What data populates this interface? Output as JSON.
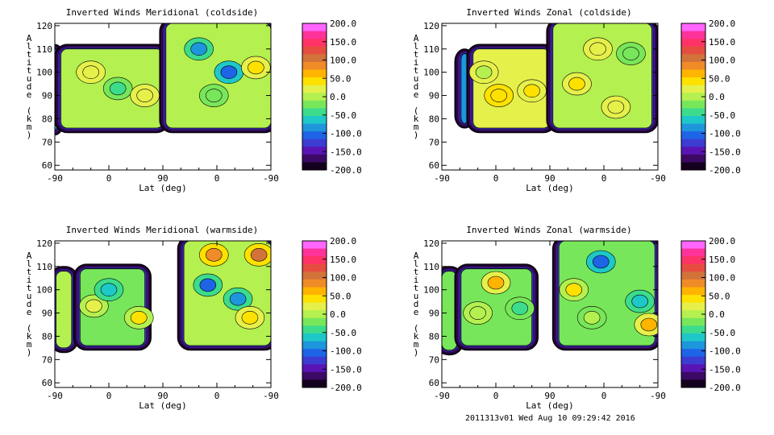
{
  "colorbar": {
    "labels": [
      "200.0",
      "150.0",
      "100.0",
      "50.0",
      "0.0",
      "-50.0",
      "-100.0",
      "-150.0",
      "-200.0"
    ],
    "colors": [
      "#ff66ff",
      "#ff3399",
      "#ff3366",
      "#e64d40",
      "#d2733a",
      "#f08c28",
      "#ffb400",
      "#ffe100",
      "#e6f04b",
      "#b4f050",
      "#78e65a",
      "#3cdc8c",
      "#1ec8c8",
      "#1e96dc",
      "#1e64e6",
      "#3c3cd2",
      "#5a14b4",
      "#3c0a64",
      "#14001e"
    ]
  },
  "footer": "2011313v01 Wed Aug 10 09:29:42 2016",
  "chart_data": [
    {
      "type": "heatmap",
      "title": "Inverted Winds Meridional (coldside)",
      "xlabel": "Lat (deg)",
      "ylabel": "Altitude (km)",
      "xticks": [
        "-90",
        "0",
        "90",
        "0",
        "-90"
      ],
      "yticks": [
        "60",
        "70",
        "80",
        "90",
        "100",
        "110",
        "120"
      ],
      "ylim": [
        58,
        121
      ],
      "value_range": [
        -200,
        200
      ],
      "blobs": [
        {
          "x": [
            -95,
            -86
          ],
          "y": [
            75,
            110
          ],
          "v": -60
        },
        {
          "x": [
            -80,
            90
          ],
          "y": [
            76,
            110
          ],
          "v": 5,
          "hot": [
            {
              "x": 15,
              "y": 93,
              "v": -55
            },
            {
              "x": 60,
              "y": 90,
              "v": 30
            },
            {
              "x": -30,
              "y": 100,
              "v": 20
            }
          ]
        },
        {
          "x": [
            95,
            270
          ],
          "y": [
            76,
            121
          ],
          "v": -10,
          "hot": [
            {
              "x": 150,
              "y": 110,
              "v": -80
            },
            {
              "x": 200,
              "y": 100,
              "v": -120
            },
            {
              "x": 245,
              "y": 102,
              "v": 45
            },
            {
              "x": 175,
              "y": 90,
              "v": -30
            }
          ]
        }
      ]
    },
    {
      "type": "heatmap",
      "title": "Inverted Winds Zonal (coldside)",
      "xlabel": "Lat (deg)",
      "ylabel": "Altitude (km)",
      "xticks": [
        "-90",
        "0",
        "90",
        "0",
        "-90"
      ],
      "yticks": [
        "60",
        "70",
        "80",
        "90",
        "100",
        "110",
        "120"
      ],
      "ylim": [
        58,
        121
      ],
      "value_range": [
        -200,
        200
      ],
      "blobs": [
        {
          "x": [
            -58,
            -46
          ],
          "y": [
            78,
            108
          ],
          "v": -80
        },
        {
          "x": [
            -38,
            90
          ],
          "y": [
            76,
            110
          ],
          "v": 20,
          "hot": [
            {
              "x": 5,
              "y": 90,
              "v": 50
            },
            {
              "x": 60,
              "y": 92,
              "v": 40
            },
            {
              "x": -20,
              "y": 100,
              "v": 5
            }
          ]
        },
        {
          "x": [
            95,
            260
          ],
          "y": [
            76,
            121
          ],
          "v": 5,
          "hot": [
            {
              "x": 135,
              "y": 95,
              "v": 40
            },
            {
              "x": 170,
              "y": 110,
              "v": 20
            },
            {
              "x": 225,
              "y": 108,
              "v": -30
            },
            {
              "x": 200,
              "y": 85,
              "v": 30
            }
          ]
        }
      ]
    },
    {
      "type": "heatmap",
      "title": "Inverted Winds Meridional (warmside)",
      "xlabel": "Lat (deg)",
      "ylabel": "Altitude (km)",
      "xticks": [
        "-90",
        "0",
        "90",
        "0",
        "-90"
      ],
      "yticks": [
        "60",
        "70",
        "80",
        "90",
        "100",
        "110",
        "120"
      ],
      "ylim": [
        58,
        121
      ],
      "value_range": [
        -200,
        200
      ],
      "blobs": [
        {
          "x": [
            -88,
            -62
          ],
          "y": [
            75,
            108
          ],
          "v": 10
        },
        {
          "x": [
            -48,
            60
          ],
          "y": [
            76,
            109
          ],
          "v": -20,
          "hot": [
            {
              "x": -25,
              "y": 93,
              "v": 20
            },
            {
              "x": 50,
              "y": 88,
              "v": 40
            },
            {
              "x": 0,
              "y": 100,
              "v": -60
            }
          ]
        },
        {
          "x": [
            125,
            270
          ],
          "y": [
            76,
            121
          ],
          "v": 0,
          "hot": [
            {
              "x": 175,
              "y": 115,
              "v": 90
            },
            {
              "x": 250,
              "y": 115,
              "v": 110
            },
            {
              "x": 165,
              "y": 102,
              "v": -110
            },
            {
              "x": 215,
              "y": 96,
              "v": -80
            },
            {
              "x": 235,
              "y": 88,
              "v": 40
            }
          ]
        }
      ]
    },
    {
      "type": "heatmap",
      "title": "Inverted Winds Zonal (warmside)",
      "xlabel": "Lat (deg)",
      "ylabel": "Altitude (km)",
      "xticks": [
        "-90",
        "0",
        "90",
        "0",
        "-90"
      ],
      "yticks": [
        "60",
        "70",
        "80",
        "90",
        "100",
        "110",
        "120"
      ],
      "ylim": [
        58,
        121
      ],
      "value_range": [
        -200,
        200
      ],
      "blobs": [
        {
          "x": [
            -90,
            -65
          ],
          "y": [
            74,
            108
          ],
          "v": -20
        },
        {
          "x": [
            -58,
            60
          ],
          "y": [
            76,
            109
          ],
          "v": -15,
          "hot": [
            {
              "x": 0,
              "y": 103,
              "v": 60
            },
            {
              "x": -30,
              "y": 90,
              "v": 10
            },
            {
              "x": 40,
              "y": 92,
              "v": -40
            }
          ]
        },
        {
          "x": [
            105,
            265
          ],
          "y": [
            76,
            121
          ],
          "v": -30,
          "hot": [
            {
              "x": 130,
              "y": 100,
              "v": 50
            },
            {
              "x": 175,
              "y": 112,
              "v": -120
            },
            {
              "x": 240,
              "y": 95,
              "v": -60
            },
            {
              "x": 255,
              "y": 85,
              "v": 60
            },
            {
              "x": 160,
              "y": 88,
              "v": 0
            }
          ]
        }
      ]
    }
  ]
}
